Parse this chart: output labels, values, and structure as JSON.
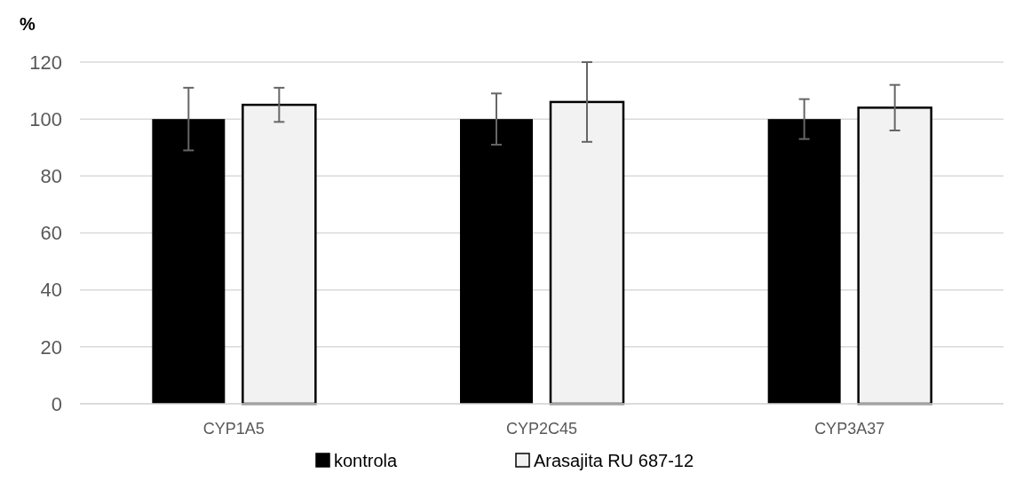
{
  "chart_data": {
    "type": "bar",
    "ylabel": "%",
    "categories": [
      "CYP1A5",
      "CYP2C45",
      "CYP3A37"
    ],
    "series": [
      {
        "name": "kontrola",
        "color": "#000000",
        "values": [
          100,
          100,
          100
        ],
        "errors": [
          11,
          9,
          7
        ]
      },
      {
        "name": "Arasajita RU 687-12",
        "color": "#f2f2f2",
        "values": [
          105,
          106,
          104
        ],
        "errors": [
          6,
          14,
          8
        ]
      }
    ],
    "ylim": [
      0,
      120
    ],
    "yticks": [
      0,
      20,
      40,
      60,
      80,
      100,
      120
    ],
    "grid": "y",
    "legend": "bottom"
  }
}
